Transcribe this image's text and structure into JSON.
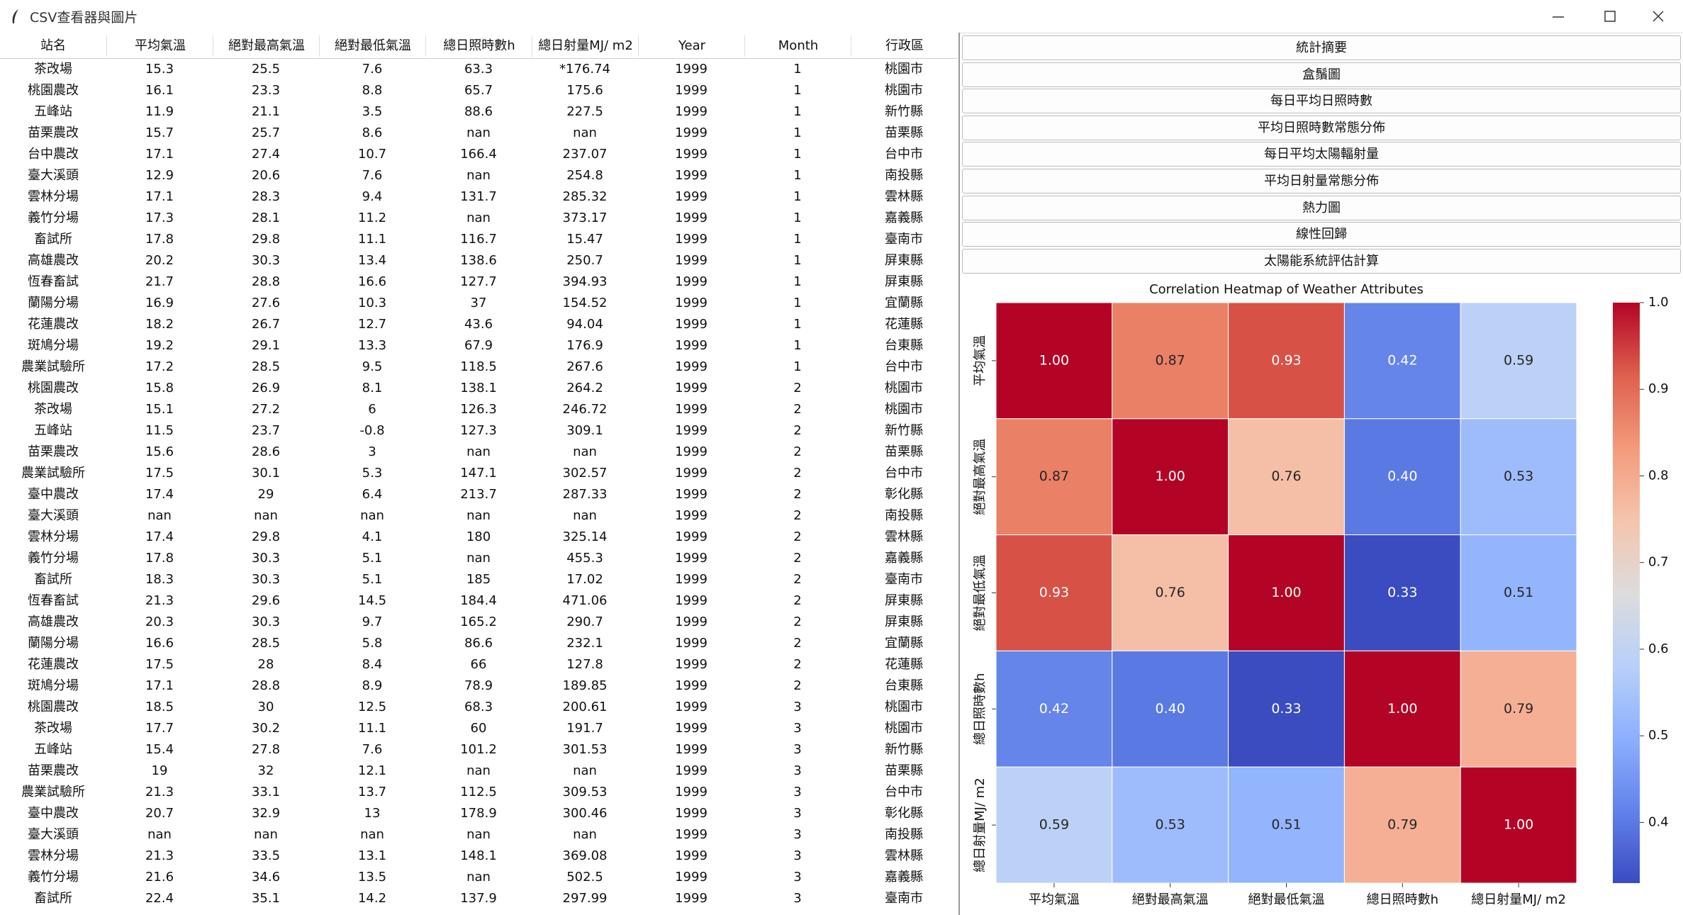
{
  "window": {
    "title": "CSV查看器與圖片"
  },
  "table": {
    "headers": [
      "站名",
      "平均氣溫",
      "絕對最高氣溫",
      "絕對最低氣溫",
      "總日照時數h",
      "總日射量MJ/ m2",
      "Year",
      "Month",
      "行政區"
    ],
    "rows": [
      [
        "茶改場",
        "15.3",
        "25.5",
        "7.6",
        "63.3",
        "*176.74",
        "1999",
        "1",
        "桃園市"
      ],
      [
        "桃園農改",
        "16.1",
        "23.3",
        "8.8",
        "65.7",
        "175.6",
        "1999",
        "1",
        "桃園市"
      ],
      [
        "五峰站",
        "11.9",
        "21.1",
        "3.5",
        "88.6",
        "227.5",
        "1999",
        "1",
        "新竹縣"
      ],
      [
        "苗栗農改",
        "15.7",
        "25.7",
        "8.6",
        "nan",
        "nan",
        "1999",
        "1",
        "苗栗縣"
      ],
      [
        "台中農改",
        "17.1",
        "27.4",
        "10.7",
        "166.4",
        "237.07",
        "1999",
        "1",
        "台中市"
      ],
      [
        "臺大溪頭",
        "12.9",
        "20.6",
        "7.6",
        "nan",
        "254.8",
        "1999",
        "1",
        "南投縣"
      ],
      [
        "雲林分場",
        "17.1",
        "28.3",
        "9.4",
        "131.7",
        "285.32",
        "1999",
        "1",
        "雲林縣"
      ],
      [
        "義竹分場",
        "17.3",
        "28.1",
        "11.2",
        "nan",
        "373.17",
        "1999",
        "1",
        "嘉義縣"
      ],
      [
        "畜試所",
        "17.8",
        "29.8",
        "11.1",
        "116.7",
        "15.47",
        "1999",
        "1",
        "臺南市"
      ],
      [
        "高雄農改",
        "20.2",
        "30.3",
        "13.4",
        "138.6",
        "250.7",
        "1999",
        "1",
        "屏東縣"
      ],
      [
        "恆春畜試",
        "21.7",
        "28.8",
        "16.6",
        "127.7",
        "394.93",
        "1999",
        "1",
        "屏東縣"
      ],
      [
        "蘭陽分場",
        "16.9",
        "27.6",
        "10.3",
        "37",
        "154.52",
        "1999",
        "1",
        "宜蘭縣"
      ],
      [
        "花蓮農改",
        "18.2",
        "26.7",
        "12.7",
        "43.6",
        "94.04",
        "1999",
        "1",
        "花蓮縣"
      ],
      [
        "斑鳩分場",
        "19.2",
        "29.1",
        "13.3",
        "67.9",
        "176.9",
        "1999",
        "1",
        "台東縣"
      ],
      [
        "農業試驗所",
        "17.2",
        "28.5",
        "9.5",
        "118.5",
        "267.6",
        "1999",
        "1",
        "台中市"
      ],
      [
        "桃園農改",
        "15.8",
        "26.9",
        "8.1",
        "138.1",
        "264.2",
        "1999",
        "2",
        "桃園市"
      ],
      [
        "茶改場",
        "15.1",
        "27.2",
        "6",
        "126.3",
        "246.72",
        "1999",
        "2",
        "桃園市"
      ],
      [
        "五峰站",
        "11.5",
        "23.7",
        "-0.8",
        "127.3",
        "309.1",
        "1999",
        "2",
        "新竹縣"
      ],
      [
        "苗栗農改",
        "15.6",
        "28.6",
        "3",
        "nan",
        "nan",
        "1999",
        "2",
        "苗栗縣"
      ],
      [
        "農業試驗所",
        "17.5",
        "30.1",
        "5.3",
        "147.1",
        "302.57",
        "1999",
        "2",
        "台中市"
      ],
      [
        "臺中農改",
        "17.4",
        "29",
        "6.4",
        "213.7",
        "287.33",
        "1999",
        "2",
        "彰化縣"
      ],
      [
        "臺大溪頭",
        "nan",
        "nan",
        "nan",
        "nan",
        "nan",
        "1999",
        "2",
        "南投縣"
      ],
      [
        "雲林分場",
        "17.4",
        "29.8",
        "4.1",
        "180",
        "325.14",
        "1999",
        "2",
        "雲林縣"
      ],
      [
        "義竹分場",
        "17.8",
        "30.3",
        "5.1",
        "nan",
        "455.3",
        "1999",
        "2",
        "嘉義縣"
      ],
      [
        "畜試所",
        "18.3",
        "30.3",
        "5.1",
        "185",
        "17.02",
        "1999",
        "2",
        "臺南市"
      ],
      [
        "恆春畜試",
        "21.3",
        "29.6",
        "14.5",
        "184.4",
        "471.06",
        "1999",
        "2",
        "屏東縣"
      ],
      [
        "高雄農改",
        "20.3",
        "30.3",
        "9.7",
        "165.2",
        "290.7",
        "1999",
        "2",
        "屏東縣"
      ],
      [
        "蘭陽分場",
        "16.6",
        "28.5",
        "5.8",
        "86.6",
        "232.1",
        "1999",
        "2",
        "宜蘭縣"
      ],
      [
        "花蓮農改",
        "17.5",
        "28",
        "8.4",
        "66",
        "127.8",
        "1999",
        "2",
        "花蓮縣"
      ],
      [
        "斑鳩分場",
        "17.1",
        "28.8",
        "8.9",
        "78.9",
        "189.85",
        "1999",
        "2",
        "台東縣"
      ],
      [
        "桃園農改",
        "18.5",
        "30",
        "12.5",
        "68.3",
        "200.61",
        "1999",
        "3",
        "桃園市"
      ],
      [
        "茶改場",
        "17.7",
        "30.2",
        "11.1",
        "60",
        "191.7",
        "1999",
        "3",
        "桃園市"
      ],
      [
        "五峰站",
        "15.4",
        "27.8",
        "7.6",
        "101.2",
        "301.53",
        "1999",
        "3",
        "新竹縣"
      ],
      [
        "苗栗農改",
        "19",
        "32",
        "12.1",
        "nan",
        "nan",
        "1999",
        "3",
        "苗栗縣"
      ],
      [
        "農業試驗所",
        "21.3",
        "33.1",
        "13.7",
        "112.5",
        "309.53",
        "1999",
        "3",
        "台中市"
      ],
      [
        "臺中農改",
        "20.7",
        "32.9",
        "13",
        "178.9",
        "300.46",
        "1999",
        "3",
        "彰化縣"
      ],
      [
        "臺大溪頭",
        "nan",
        "nan",
        "nan",
        "nan",
        "nan",
        "1999",
        "3",
        "南投縣"
      ],
      [
        "雲林分場",
        "21.3",
        "33.5",
        "13.1",
        "148.1",
        "369.08",
        "1999",
        "3",
        "雲林縣"
      ],
      [
        "義竹分場",
        "21.6",
        "34.6",
        "13.5",
        "nan",
        "502.5",
        "1999",
        "3",
        "嘉義縣"
      ],
      [
        "畜試所",
        "22.4",
        "35.1",
        "14.2",
        "137.9",
        "297.99",
        "1999",
        "3",
        "臺南市"
      ]
    ]
  },
  "buttons": [
    "統計摘要",
    "盒鬚圖",
    "每日平均日照時數",
    "平均日照時數常態分佈",
    "每日平均太陽輻射量",
    "平均日射量常態分佈",
    "熱力圖",
    "線性回歸",
    "太陽能系統評估計算"
  ],
  "heatmap": {
    "type": "heatmap",
    "title": "Correlation Heatmap of Weather Attributes",
    "labels": [
      "平均氣溫",
      "絕對最高氣溫",
      "絕對最低氣溫",
      "總日照時數h",
      "總日射量MJ/ m2"
    ],
    "values": [
      [
        1,
        0.87,
        0.93,
        0.42,
        0.59
      ],
      [
        0.87,
        1,
        0.76,
        0.4,
        0.53
      ],
      [
        0.93,
        0.76,
        1,
        0.33,
        0.51
      ],
      [
        0.42,
        0.4,
        0.33,
        1,
        0.79
      ],
      [
        0.59,
        0.53,
        0.51,
        0.79,
        1
      ]
    ],
    "value_labels": [
      [
        "1.00",
        "0.87",
        "0.93",
        "0.42",
        "0.59"
      ],
      [
        "0.87",
        "1.00",
        "0.76",
        "0.40",
        "0.53"
      ],
      [
        "0.93",
        "0.76",
        "1.00",
        "0.33",
        "0.51"
      ],
      [
        "0.42",
        "0.40",
        "0.33",
        "1.00",
        "0.79"
      ],
      [
        "0.59",
        "0.53",
        "0.51",
        "0.79",
        "1.00"
      ]
    ],
    "colormap": "coolwarm",
    "zlim": [
      0.33,
      1
    ],
    "zticks": [
      0.4,
      0.5,
      0.6,
      0.7,
      0.8,
      0.9,
      {
        "value": 1,
        "label": "1.0"
      }
    ]
  }
}
